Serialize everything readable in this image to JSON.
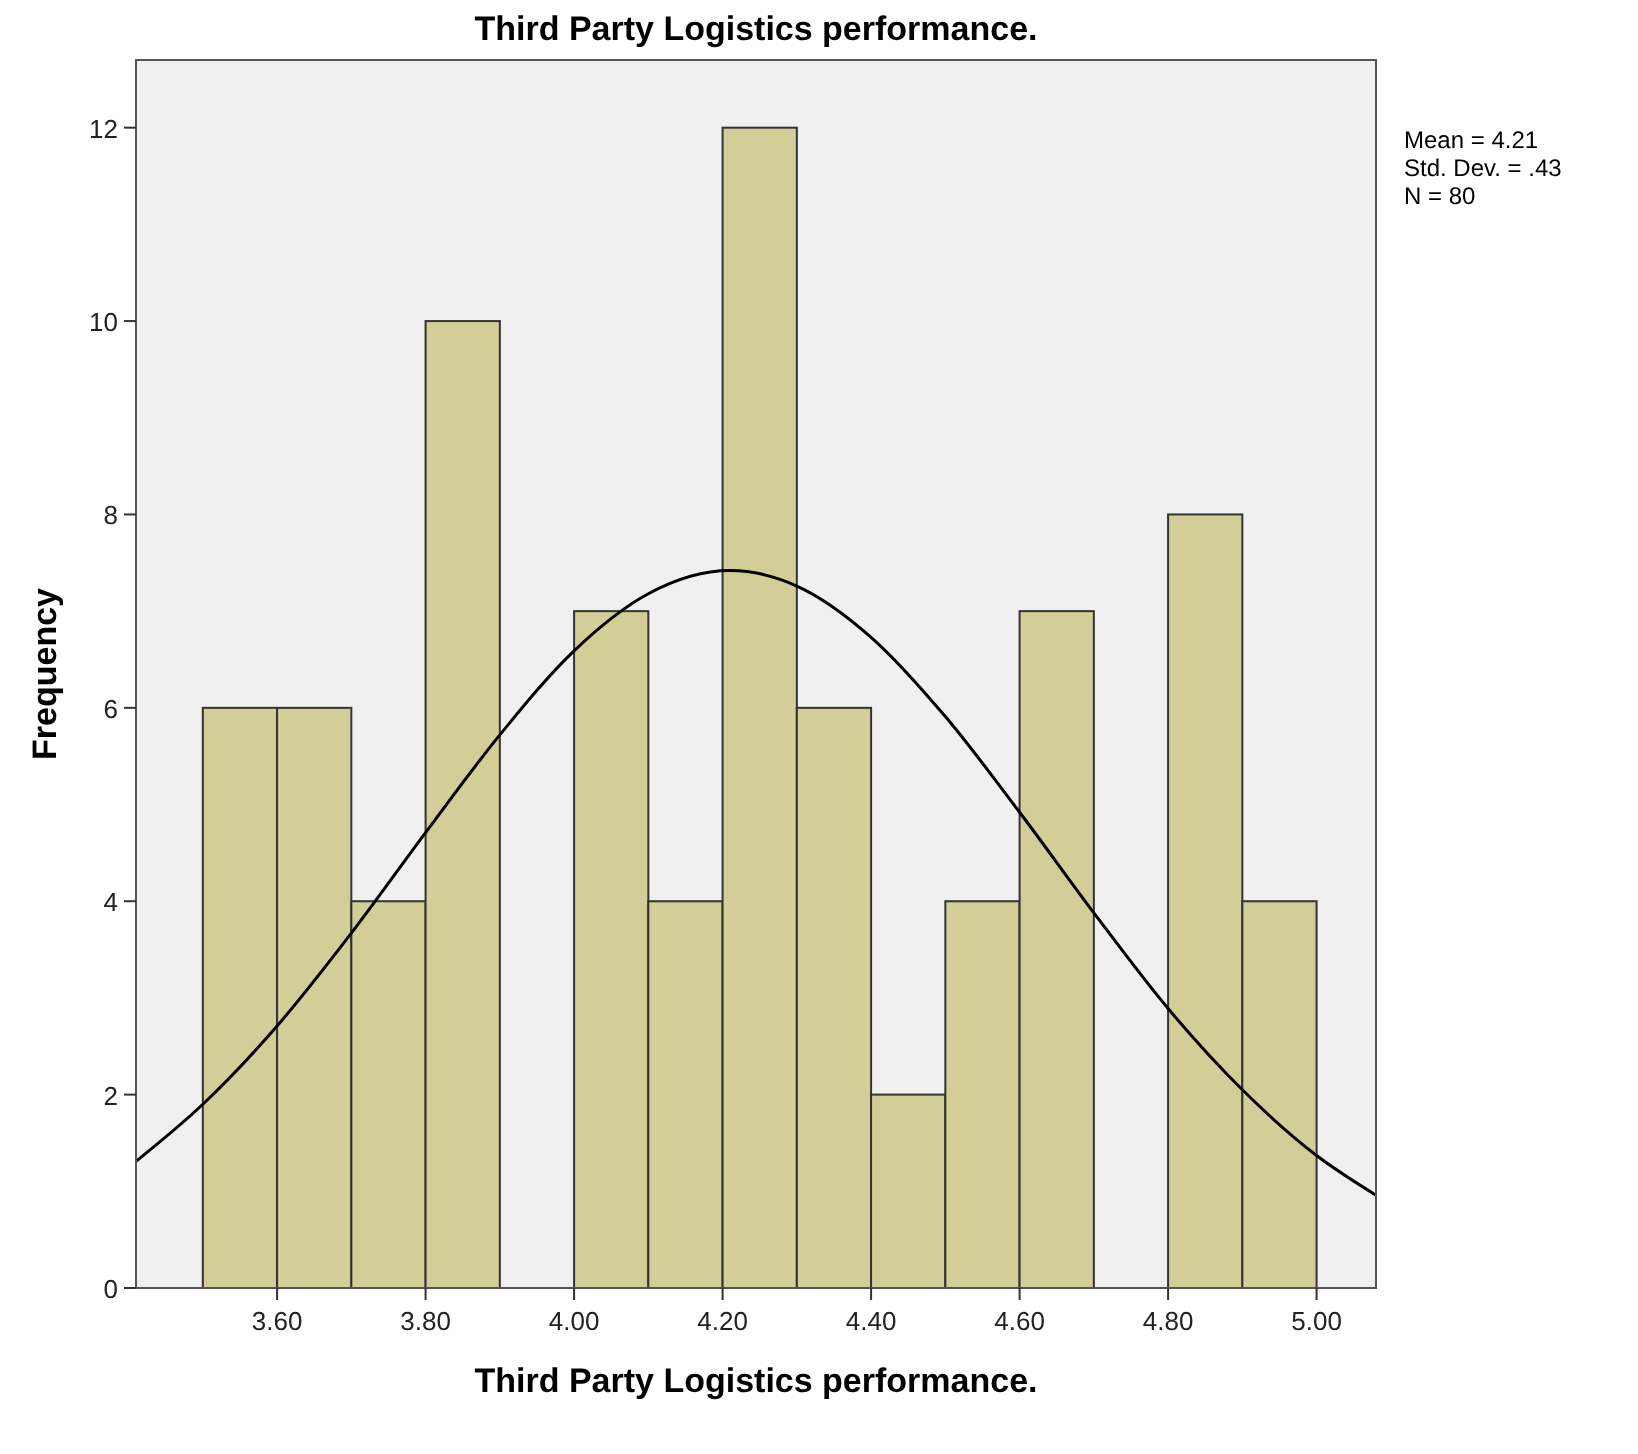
{
  "chart_data": {
    "type": "histogram",
    "title": "Third Party Logistics performance.",
    "xlabel": "Third Party Logistics performance.",
    "ylabel": "Frequency",
    "bins": [
      3.5,
      3.6,
      3.7,
      3.8,
      3.9,
      4.0,
      4.1,
      4.2,
      4.3,
      4.4,
      4.5,
      4.6,
      4.7,
      4.8,
      4.9,
      5.0
    ],
    "values": [
      6,
      6,
      4,
      10,
      0,
      7,
      4,
      12,
      6,
      2,
      4,
      7,
      0,
      8,
      4
    ],
    "color": "#d3ce97",
    "series": [
      {
        "type": "line",
        "color": "#000000",
        "x": [
          3.41,
          3.5,
          3.6,
          3.7,
          3.8,
          3.9,
          4.0,
          4.1,
          4.21,
          4.3,
          4.4,
          4.5,
          4.6,
          4.7,
          4.8,
          4.9,
          5.0,
          5.08
        ],
        "values": [
          1.31,
          1.9,
          2.71,
          3.67,
          4.71,
          5.72,
          6.59,
          7.18,
          7.42,
          7.26,
          6.73,
          5.91,
          4.92,
          3.88,
          2.89,
          2.05,
          1.37,
          0.96
        ]
      }
    ],
    "xlim": [
      3.41,
      5.08
    ],
    "ylim": [
      0,
      12.7
    ],
    "xticks": [
      {
        "value": 3.6,
        "label": "3.60"
      },
      {
        "value": 3.8,
        "label": "3.80"
      },
      {
        "value": 4.0,
        "label": "4.00"
      },
      {
        "value": 4.2,
        "label": "4.20"
      },
      {
        "value": 4.4,
        "label": "4.40"
      },
      {
        "value": 4.6,
        "label": "4.60"
      },
      {
        "value": 4.8,
        "label": "4.80"
      },
      {
        "value": 5.0,
        "label": "5.00"
      }
    ],
    "yticks": [
      0,
      2,
      4,
      6,
      8,
      10,
      12
    ],
    "annotations": [
      "Mean = 4.21",
      "Std. Dev. = .43",
      "N = 80"
    ],
    "grid": false
  }
}
